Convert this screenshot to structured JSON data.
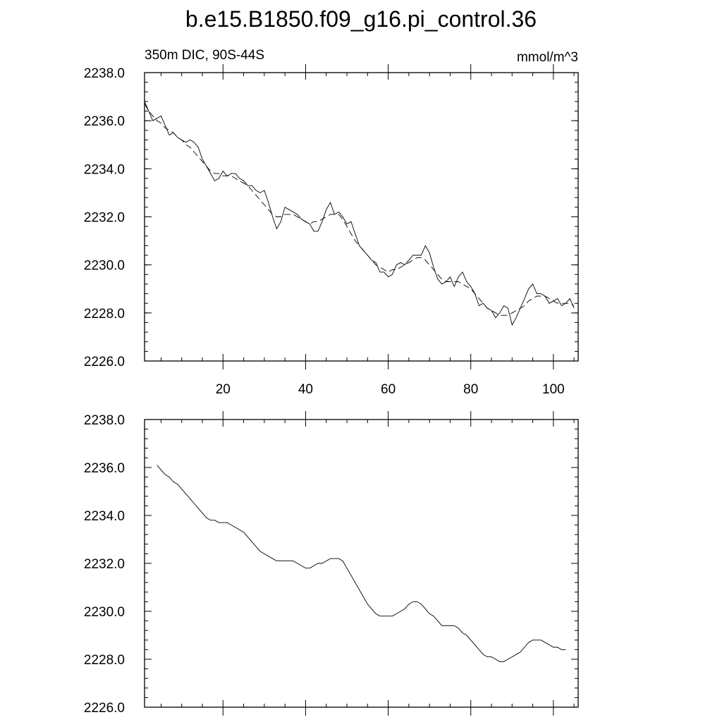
{
  "figure": {
    "title": "b.e15.B1850.f09_g16.pi_control.36",
    "left_label": "350m DIC, 90S-44S",
    "right_label": "mmol/m^3"
  },
  "chart_data": [
    {
      "type": "line",
      "xlim": [
        1,
        106
      ],
      "ylim": [
        2226.0,
        2238.0
      ],
      "x_ticks": [
        20,
        40,
        60,
        80,
        100
      ],
      "y_ticks": [
        "2226.0",
        "2228.0",
        "2230.0",
        "2232.0",
        "2234.0",
        "2236.0",
        "2238.0"
      ],
      "series": [
        {
          "style": "solid",
          "x": [
            1,
            2,
            3,
            4,
            5,
            6,
            7,
            8,
            9,
            10,
            11,
            12,
            13,
            14,
            15,
            16,
            17,
            18,
            19,
            20,
            21,
            22,
            23,
            24,
            25,
            26,
            27,
            28,
            29,
            30,
            31,
            32,
            33,
            34,
            35,
            36,
            37,
            38,
            39,
            40,
            41,
            42,
            43,
            44,
            45,
            46,
            47,
            48,
            49,
            50,
            51,
            52,
            53,
            54,
            55,
            56,
            57,
            58,
            59,
            60,
            61,
            62,
            63,
            64,
            65,
            66,
            67,
            68,
            69,
            70,
            71,
            72,
            73,
            74,
            75,
            76,
            77,
            78,
            79,
            80,
            81,
            82,
            83,
            84,
            85,
            86,
            87,
            88,
            89,
            90,
            91,
            92,
            93,
            94,
            95,
            96,
            97,
            98,
            99,
            100,
            101,
            102,
            103,
            104,
            105
          ],
          "y": [
            2236.8,
            2236.4,
            2236.0,
            2236.1,
            2236.2,
            2235.8,
            2235.4,
            2235.5,
            2235.3,
            2235.2,
            2235.1,
            2235.2,
            2235.1,
            2234.9,
            2234.4,
            2234.1,
            2233.8,
            2233.5,
            2233.6,
            2233.9,
            2233.7,
            2233.8,
            2233.8,
            2233.6,
            2233.5,
            2233.3,
            2233.3,
            2233.1,
            2233.0,
            2233.1,
            2232.6,
            2232.0,
            2231.5,
            2231.8,
            2232.4,
            2232.3,
            2232.2,
            2232.1,
            2231.9,
            2231.8,
            2231.7,
            2231.4,
            2231.4,
            2231.8,
            2232.3,
            2232.6,
            2232.1,
            2232.2,
            2232.0,
            2231.7,
            2231.8,
            2231.3,
            2230.8,
            2230.6,
            2230.4,
            2230.2,
            2230.1,
            2229.7,
            2229.7,
            2229.5,
            2229.6,
            2230.0,
            2230.1,
            2230.0,
            2230.2,
            2230.4,
            2230.4,
            2230.4,
            2230.8,
            2230.5,
            2229.9,
            2229.4,
            2229.2,
            2229.3,
            2229.5,
            2229.1,
            2229.5,
            2229.7,
            2229.3,
            2229.1,
            2228.8,
            2228.3,
            2228.4,
            2228.2,
            2228.1,
            2227.8,
            2228.0,
            2228.3,
            2228.2,
            2227.5,
            2227.8,
            2228.2,
            2228.6,
            2229.0,
            2229.2,
            2228.8,
            2228.8,
            2228.7,
            2228.4,
            2228.5,
            2228.6,
            2228.3,
            2228.4,
            2228.6,
            2228.2
          ]
        },
        {
          "style": "dashed",
          "x": [
            1,
            2,
            3,
            4,
            5,
            6,
            7,
            8,
            9,
            10,
            11,
            12,
            13,
            14,
            15,
            16,
            17,
            18,
            19,
            20,
            21,
            22,
            23,
            24,
            25,
            26,
            27,
            28,
            29,
            30,
            31,
            32,
            33,
            34,
            35,
            36,
            37,
            38,
            39,
            40,
            41,
            42,
            43,
            44,
            45,
            46,
            47,
            48,
            49,
            50,
            51,
            52,
            53,
            54,
            55,
            56,
            57,
            58,
            59,
            60,
            61,
            62,
            63,
            64,
            65,
            66,
            67,
            68,
            69,
            70,
            71,
            72,
            73,
            74,
            75,
            76,
            77,
            78,
            79,
            80,
            81,
            82,
            83,
            84,
            85,
            86,
            87,
            88,
            89,
            90,
            91,
            92,
            93,
            94,
            95,
            96,
            97,
            98,
            99,
            100,
            101,
            102,
            103,
            104,
            105
          ],
          "y": [
            2236.7,
            2236.4,
            2236.2,
            2236.0,
            2235.9,
            2235.7,
            2235.6,
            2235.5,
            2235.3,
            2235.2,
            2235.0,
            2234.9,
            2234.7,
            2234.5,
            2234.3,
            2234.1,
            2233.9,
            2233.8,
            2233.8,
            2233.7,
            2233.7,
            2233.7,
            2233.6,
            2233.5,
            2233.4,
            2233.3,
            2233.1,
            2232.9,
            2232.7,
            2232.5,
            2232.3,
            2232.1,
            2232.0,
            2232.0,
            2232.1,
            2232.1,
            2232.1,
            2232.0,
            2231.9,
            2231.8,
            2231.7,
            2231.8,
            2231.8,
            2231.9,
            2232.0,
            2232.1,
            2232.1,
            2232.1,
            2231.9,
            2231.6,
            2231.3,
            2231.0,
            2230.8,
            2230.6,
            2230.4,
            2230.2,
            2230.0,
            2229.9,
            2229.8,
            2229.7,
            2229.8,
            2229.8,
            2229.9,
            2230.0,
            2230.1,
            2230.2,
            2230.3,
            2230.3,
            2230.2,
            2230.0,
            2229.8,
            2229.6,
            2229.4,
            2229.3,
            2229.3,
            2229.3,
            2229.3,
            2229.2,
            2229.1,
            2229.0,
            2228.8,
            2228.6,
            2228.4,
            2228.2,
            2228.1,
            2228.0,
            2227.9,
            2227.9,
            2227.9,
            2228.0,
            2228.1,
            2228.2,
            2228.3,
            2228.5,
            2228.6,
            2228.7,
            2228.7,
            2228.7,
            2228.6,
            2228.5,
            2228.4,
            2228.4,
            2228.4,
            2228.4,
            2228.3
          ]
        }
      ]
    },
    {
      "type": "line",
      "xlim": [
        1,
        106
      ],
      "ylim": [
        2226.0,
        2238.0
      ],
      "x_ticks": [
        20,
        40,
        60,
        80,
        100
      ],
      "y_ticks": [
        "2226.0",
        "2228.0",
        "2230.0",
        "2232.0",
        "2234.0",
        "2236.0",
        "2238.0"
      ],
      "series": [
        {
          "style": "solid",
          "x": [
            4,
            5,
            6,
            7,
            8,
            9,
            10,
            11,
            12,
            13,
            14,
            15,
            16,
            17,
            18,
            19,
            20,
            21,
            22,
            23,
            24,
            25,
            26,
            27,
            28,
            29,
            30,
            31,
            32,
            33,
            34,
            35,
            36,
            37,
            38,
            39,
            40,
            41,
            42,
            43,
            44,
            45,
            46,
            47,
            48,
            49,
            50,
            51,
            52,
            53,
            54,
            55,
            56,
            57,
            58,
            59,
            60,
            61,
            62,
            63,
            64,
            65,
            66,
            67,
            68,
            69,
            70,
            71,
            72,
            73,
            74,
            75,
            76,
            77,
            78,
            79,
            80,
            81,
            82,
            83,
            84,
            85,
            86,
            87,
            88,
            89,
            90,
            91,
            92,
            93,
            94,
            95,
            96,
            97,
            98,
            99,
            100,
            101,
            102,
            103
          ],
          "y": [
            2236.1,
            2235.9,
            2235.7,
            2235.6,
            2235.4,
            2235.3,
            2235.1,
            2234.9,
            2234.7,
            2234.5,
            2234.3,
            2234.1,
            2233.9,
            2233.8,
            2233.8,
            2233.7,
            2233.7,
            2233.7,
            2233.6,
            2233.5,
            2233.4,
            2233.3,
            2233.1,
            2232.9,
            2232.7,
            2232.5,
            2232.4,
            2232.3,
            2232.2,
            2232.1,
            2232.1,
            2232.1,
            2232.1,
            2232.1,
            2232.0,
            2231.9,
            2231.8,
            2231.8,
            2231.9,
            2232.0,
            2232.0,
            2232.1,
            2232.2,
            2232.2,
            2232.2,
            2232.1,
            2231.8,
            2231.5,
            2231.2,
            2230.9,
            2230.6,
            2230.3,
            2230.1,
            2229.9,
            2229.8,
            2229.8,
            2229.8,
            2229.8,
            2229.9,
            2230.0,
            2230.1,
            2230.3,
            2230.4,
            2230.4,
            2230.3,
            2230.1,
            2229.9,
            2229.8,
            2229.6,
            2229.4,
            2229.4,
            2229.4,
            2229.4,
            2229.3,
            2229.1,
            2229.0,
            2228.8,
            2228.6,
            2228.4,
            2228.2,
            2228.1,
            2228.1,
            2228.0,
            2227.9,
            2227.9,
            2228.0,
            2228.1,
            2228.2,
            2228.3,
            2228.5,
            2228.7,
            2228.8,
            2228.8,
            2228.8,
            2228.7,
            2228.6,
            2228.5,
            2228.5,
            2228.4,
            2228.4
          ]
        }
      ]
    }
  ]
}
